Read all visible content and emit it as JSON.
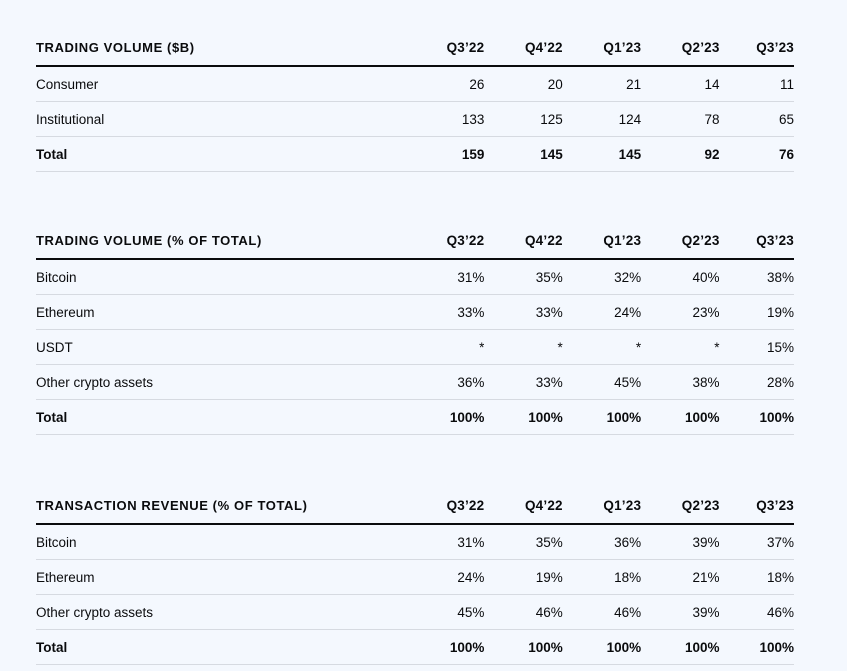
{
  "quarters": [
    "Q3’22",
    "Q4’22",
    "Q1’23",
    "Q2’23",
    "Q3’23"
  ],
  "tables": [
    {
      "title": "TRADING VOLUME ($B)",
      "rows": [
        {
          "label": "Consumer",
          "values": [
            "26",
            "20",
            "21",
            "14",
            "11"
          ]
        },
        {
          "label": "Institutional",
          "values": [
            "133",
            "125",
            "124",
            "78",
            "65"
          ]
        },
        {
          "label": "Total",
          "values": [
            "159",
            "145",
            "145",
            "92",
            "76"
          ]
        }
      ]
    },
    {
      "title": "TRADING VOLUME (% OF TOTAL)",
      "rows": [
        {
          "label": "Bitcoin",
          "values": [
            "31%",
            "35%",
            "32%",
            "40%",
            "38%"
          ]
        },
        {
          "label": "Ethereum",
          "values": [
            "33%",
            "33%",
            "24%",
            "23%",
            "19%"
          ]
        },
        {
          "label": "USDT",
          "values": [
            "*",
            "*",
            "*",
            "*",
            "15%"
          ]
        },
        {
          "label": "Other crypto assets",
          "values": [
            "36%",
            "33%",
            "45%",
            "38%",
            "28%"
          ]
        },
        {
          "label": "Total",
          "values": [
            "100%",
            "100%",
            "100%",
            "100%",
            "100%"
          ]
        }
      ]
    },
    {
      "title": "TRANSACTION REVENUE (% OF TOTAL)",
      "rows": [
        {
          "label": "Bitcoin",
          "values": [
            "31%",
            "35%",
            "36%",
            "39%",
            "37%"
          ]
        },
        {
          "label": "Ethereum",
          "values": [
            "24%",
            "19%",
            "18%",
            "21%",
            "18%"
          ]
        },
        {
          "label": "Other crypto assets",
          "values": [
            "45%",
            "46%",
            "46%",
            "39%",
            "46%"
          ]
        },
        {
          "label": "Total",
          "values": [
            "100%",
            "100%",
            "100%",
            "100%",
            "100%"
          ]
        }
      ]
    }
  ]
}
